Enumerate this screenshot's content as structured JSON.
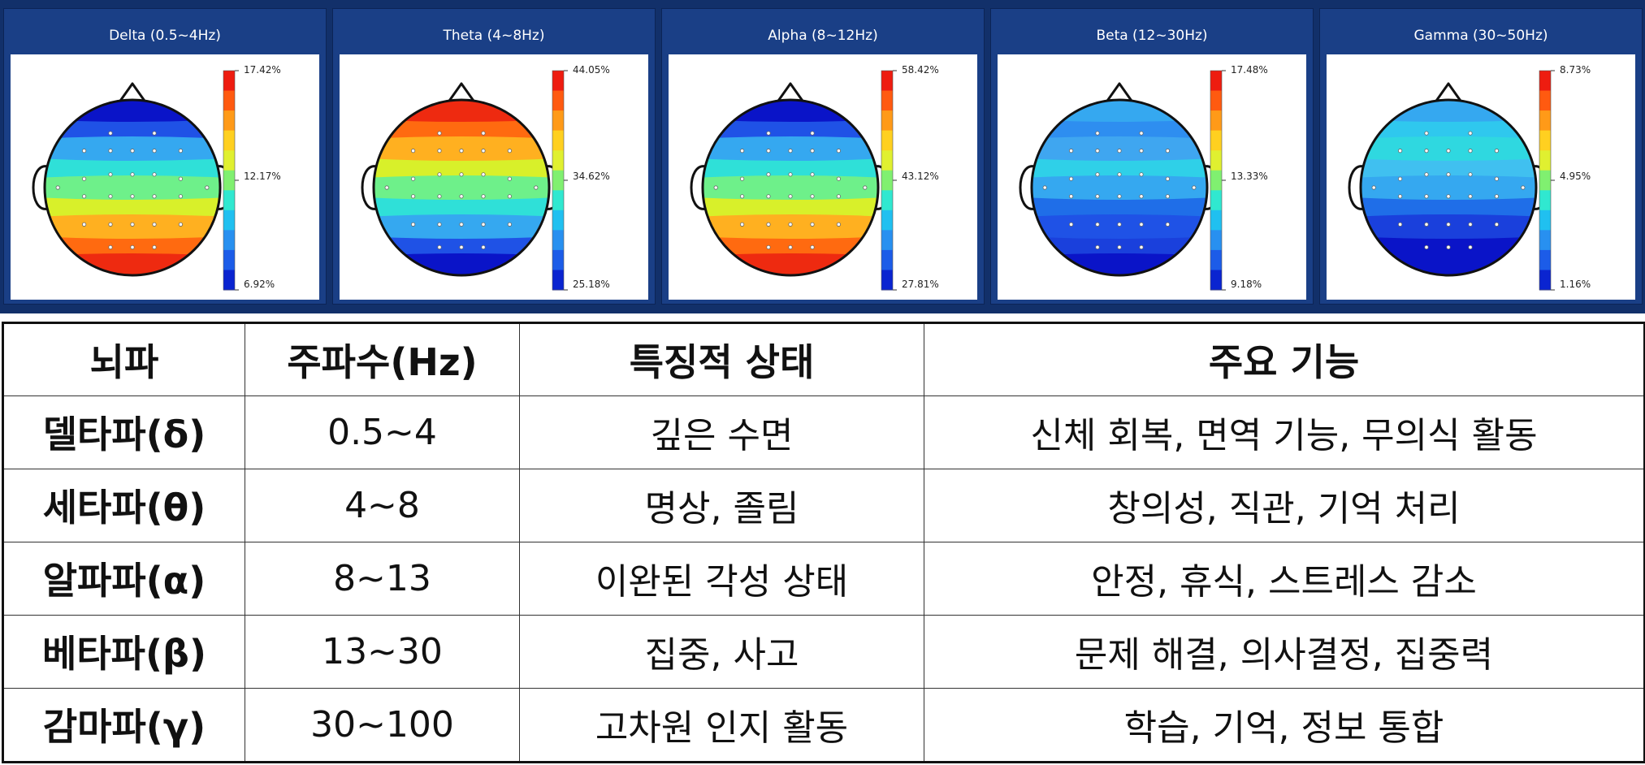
{
  "topomaps": [
    {
      "title": "Delta (0.5~4Hz)",
      "max_label": "17.42%",
      "mid_label": "12.17%",
      "min_label": "6.92%",
      "bands": [
        "#0a14c8",
        "#1f52e6",
        "#35a8f0",
        "#2fe0d8",
        "#6ef08a",
        "#d8f02a",
        "#ffb020",
        "#ff6a10",
        "#ee2a10"
      ]
    },
    {
      "title": "Theta (4~8Hz)",
      "max_label": "44.05%",
      "mid_label": "34.62%",
      "min_label": "25.18%",
      "bands": [
        "#ee2a10",
        "#ff6a10",
        "#ffb020",
        "#d8f02a",
        "#6ef08a",
        "#2fe0d8",
        "#35a8f0",
        "#1f52e6",
        "#0a14c8"
      ]
    },
    {
      "title": "Alpha (8~12Hz)",
      "max_label": "58.42%",
      "mid_label": "43.12%",
      "min_label": "27.81%",
      "bands": [
        "#0a14c8",
        "#1f52e6",
        "#35a8f0",
        "#2fe0d8",
        "#6ef08a",
        "#d8f02a",
        "#ffb020",
        "#ff6a10",
        "#ee2a10"
      ]
    },
    {
      "title": "Beta (12~30Hz)",
      "max_label": "17.48%",
      "mid_label": "13.33%",
      "min_label": "9.18%",
      "bands": [
        "#35a8f0",
        "#2e8ef0",
        "#3fa6f0",
        "#2fd0e8",
        "#35a8f0",
        "#1f6ee8",
        "#1f52e6",
        "#1a40dc",
        "#0a14c8"
      ]
    },
    {
      "title": "Gamma (30~50Hz)",
      "max_label": "8.73%",
      "mid_label": "4.95%",
      "min_label": "1.16%",
      "bands": [
        "#35a8f0",
        "#2fc8ee",
        "#2fd8e0",
        "#40c0f0",
        "#35a8f0",
        "#1f6ee8",
        "#1a40dc",
        "#0a14c8",
        "#0a14c8"
      ]
    }
  ],
  "colorbar_colors": [
    "#ee1c10",
    "#ff5a10",
    "#ff9a18",
    "#ffd020",
    "#e0f030",
    "#80f070",
    "#30e8d0",
    "#20c0f0",
    "#2890f0",
    "#1c5ce8",
    "#0a24d0"
  ],
  "table": {
    "headers": [
      "뇌파",
      "주파수(Hz)",
      "특징적 상태",
      "주요 기능"
    ],
    "rows": [
      [
        "델타파(δ)",
        "0.5~4",
        "깊은 수면",
        "신체 회복, 면역 기능, 무의식 활동"
      ],
      [
        "세타파(θ)",
        "4~8",
        "명상, 졸림",
        "창의성, 직관, 기억 처리"
      ],
      [
        "알파파(α)",
        "8~13",
        "이완된 각성 상태",
        "안정, 휴식, 스트레스 감소"
      ],
      [
        "베타파(β)",
        "13~30",
        "집중, 사고",
        "문제 해결, 의사결정, 집중력"
      ],
      [
        "감마파(γ)",
        "30~100",
        "고차원 인지 활동",
        "학습, 기억, 정보 통합"
      ]
    ]
  }
}
